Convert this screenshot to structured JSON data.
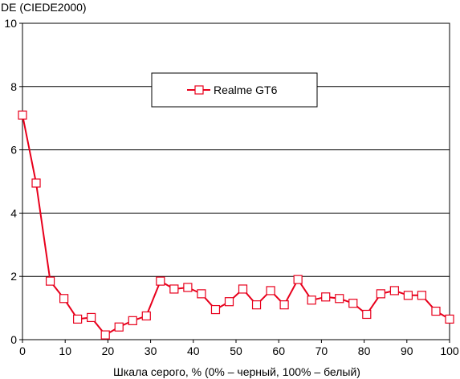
{
  "chart_data": {
    "type": "line",
    "title": "",
    "ylabel": "DE (CIEDE2000)",
    "xlabel": "Шкала серого, % (0% – черный, 100% – белый)",
    "xlim": [
      0,
      100
    ],
    "ylim": [
      0,
      10
    ],
    "x_ticks": [
      0,
      10,
      20,
      30,
      40,
      50,
      60,
      70,
      80,
      90,
      100
    ],
    "y_ticks": [
      0,
      2,
      4,
      6,
      8,
      10
    ],
    "grid": "horizontal",
    "legend_position": "top-center",
    "series": [
      {
        "name": "Realme GT6",
        "color": "#e8001c",
        "marker": "hollow-square",
        "x": [
          0,
          3.2,
          6.5,
          9.7,
          12.9,
          16.1,
          19.4,
          22.6,
          25.8,
          29.0,
          32.3,
          35.5,
          38.7,
          41.9,
          45.2,
          48.4,
          51.6,
          54.8,
          58.1,
          61.3,
          64.5,
          67.7,
          71.0,
          74.2,
          77.4,
          80.6,
          83.9,
          87.1,
          90.3,
          93.5,
          96.8,
          100
        ],
        "values": [
          7.1,
          4.95,
          1.85,
          1.3,
          0.65,
          0.7,
          0.15,
          0.4,
          0.6,
          0.75,
          1.85,
          1.6,
          1.65,
          1.45,
          0.95,
          1.2,
          1.6,
          1.1,
          1.55,
          1.1,
          1.9,
          1.25,
          1.35,
          1.3,
          1.15,
          0.8,
          1.45,
          1.55,
          1.4,
          1.4,
          0.9,
          0.65
        ]
      }
    ]
  }
}
